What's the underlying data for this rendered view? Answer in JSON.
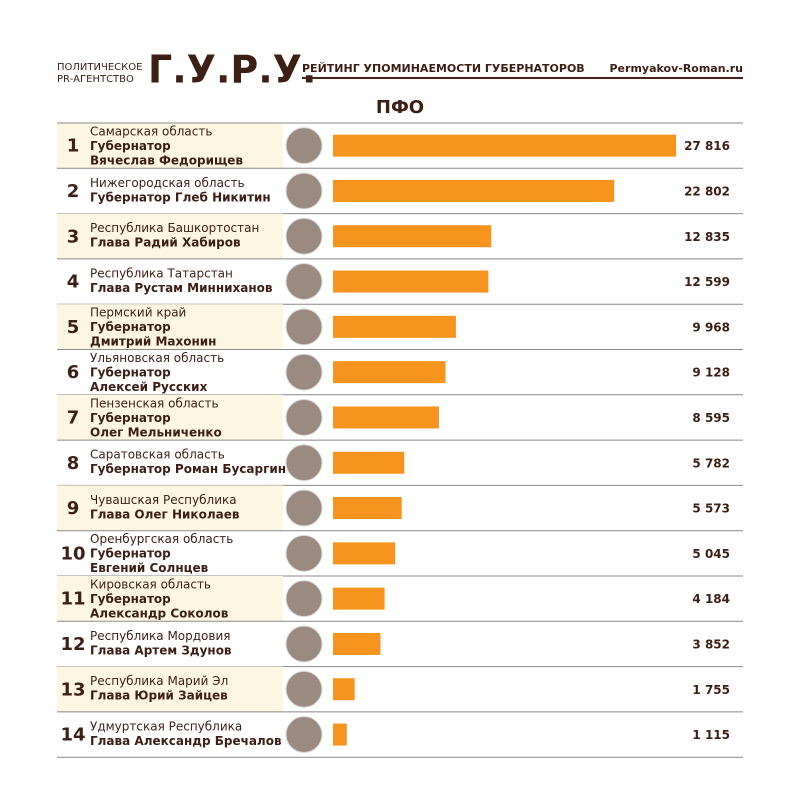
{
  "chart_data": {
    "type": "bar",
    "header": {
      "agency_line1": "ПОЛИТИЧЕСКОЕ",
      "agency_line2": "PR-АГЕНТСТВО",
      "logo": "Г.У.Р.У.",
      "subtitle": "РЕЙТИНГ УПОМИНАЕМОСТИ ГУБЕРНАТОРОВ",
      "site": "Permyakov-Roman.ru"
    },
    "title": "ПФО",
    "ranks": [
      1,
      2,
      3,
      4,
      5,
      6,
      7,
      8,
      9,
      10,
      11,
      12,
      13,
      14
    ],
    "categories": [
      "Самарская область",
      "Нижегородская область",
      "Республика Башкортостан",
      "Республика Татарстан",
      "Пермский край",
      "Ульяновская область",
      "Пензенская область",
      "Саратовская область",
      "Чувашская Республика",
      "Оренбургская область",
      "Кировская область",
      "Республика Мордовия",
      "Республика Марий Эл",
      "Удмуртская Республика"
    ],
    "leaders": [
      [
        "Губернатор",
        "Вячеслав Федорищев"
      ],
      [
        "Губернатор Глеб Никитин"
      ],
      [
        "Глава Радий Хабиров"
      ],
      [
        "Глава Рустам Минниханов"
      ],
      [
        "Губернатор",
        "Дмитрий Махонин"
      ],
      [
        "Губернатор",
        "Алексей Русских"
      ],
      [
        "Губернатор",
        "Олег Мельниченко"
      ],
      [
        "Губернатор Роман Бусаргин"
      ],
      [
        "Глава Олег Николаев"
      ],
      [
        "Губернатор",
        "Евгений Солнцев"
      ],
      [
        "Губернатор",
        "Александр Соколов"
      ],
      [
        "Глава Артем Здунов"
      ],
      [
        "Глава Юрий Зайцев"
      ],
      [
        "Глава Александр Бречалов"
      ]
    ],
    "values": [
      27816,
      22802,
      12835,
      12599,
      9968,
      9128,
      8595,
      5782,
      5573,
      5045,
      4184,
      3852,
      1755,
      1115
    ],
    "value_labels": [
      "27 816",
      "22 802",
      "12 835",
      "12 599",
      "9 968",
      "9 128",
      "8 595",
      "5 782",
      "5 573",
      "5 045",
      "4 184",
      "3 852",
      "1 755",
      "1 115"
    ],
    "color": "#f7941d"
  }
}
